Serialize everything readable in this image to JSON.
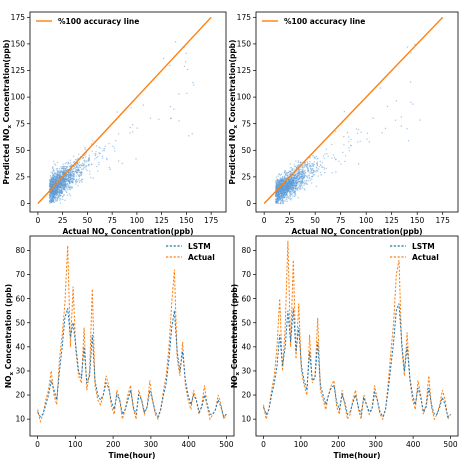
{
  "colors": {
    "scatter": "#5b9bd5",
    "line_ideal": "#ff7f0e",
    "lstm": "#1f77b4",
    "actual": "#ff7f0e"
  },
  "chart_data": [
    {
      "type": "scatter",
      "xlabel_main": "Actual NO",
      "xlabel_sub": "x",
      "xlabel_tail": " Concentration(ppb)",
      "ylabel_main": "Predicted NO",
      "ylabel_sub": "x",
      "ylabel_tail": " Concentration(ppb)",
      "xlim": [
        -8,
        190
      ],
      "ylim": [
        -8,
        180
      ],
      "xticks": [
        0,
        25,
        50,
        75,
        100,
        125,
        150,
        175
      ],
      "yticks": [
        0,
        25,
        50,
        75,
        100,
        125,
        150,
        175
      ],
      "legend": {
        "position": "top-left",
        "entries": [
          "%100 accuracy line"
        ]
      },
      "reference_line": {
        "name": "%100 accuracy line",
        "from": [
          0,
          0
        ],
        "to": [
          175,
          175
        ]
      },
      "cloud": {
        "center": [
          18,
          16
        ],
        "spread": [
          14,
          12
        ],
        "n": 1400,
        "bias": 0.72
      },
      "grid": false
    },
    {
      "type": "scatter",
      "xlabel_main": "Actual NO",
      "xlabel_sub": "x",
      "xlabel_tail": " Concentration(ppb)",
      "ylabel_main": "Predicted NO",
      "ylabel_sub": "x",
      "ylabel_tail": " Concentration(ppb)",
      "xlim": [
        -8,
        190
      ],
      "ylim": [
        -8,
        180
      ],
      "xticks": [
        0,
        25,
        50,
        75,
        100,
        125,
        150,
        175
      ],
      "yticks": [
        0,
        25,
        50,
        75,
        100,
        125,
        150,
        175
      ],
      "legend": {
        "position": "top-left",
        "entries": [
          "%100 accuracy line"
        ]
      },
      "reference_line": {
        "name": "%100 accuracy line",
        "from": [
          0,
          0
        ],
        "to": [
          175,
          175
        ]
      },
      "cloud": {
        "center": [
          18,
          14
        ],
        "spread": [
          15,
          11
        ],
        "n": 1400,
        "bias": 0.62
      },
      "grid": false
    },
    {
      "type": "line",
      "xlabel": "Time(hour)",
      "ylabel_main": "NO",
      "ylabel_sub": "x",
      "ylabel_tail": " Concentration (ppb)",
      "xlim": [
        -20,
        520
      ],
      "ylim": [
        3,
        86
      ],
      "xticks": [
        0,
        100,
        200,
        300,
        400,
        500
      ],
      "yticks": [
        10,
        20,
        30,
        40,
        50,
        60,
        70,
        80
      ],
      "legend": {
        "position": "top-right",
        "entries": [
          "LSTM",
          "Actual"
        ]
      },
      "series": [
        {
          "name": "LSTM",
          "key": "lstm"
        },
        {
          "name": "Actual",
          "key": "actual"
        }
      ],
      "actual": [
        14,
        9,
        12,
        18,
        22,
        30,
        20,
        16,
        35,
        45,
        58,
        82,
        40,
        65,
        38,
        28,
        25,
        48,
        22,
        30,
        64,
        24,
        18,
        16,
        20,
        28,
        24,
        15,
        12,
        22,
        18,
        10,
        14,
        20,
        24,
        14,
        10,
        22,
        18,
        12,
        15,
        26,
        18,
        12,
        10,
        14,
        22,
        28,
        40,
        58,
        72,
        35,
        28,
        42,
        24,
        18,
        14,
        22,
        18,
        12,
        16,
        24,
        15,
        10,
        12,
        14,
        20,
        16,
        10,
        12
      ],
      "lstm": [
        13,
        11,
        12,
        16,
        20,
        26,
        22,
        18,
        30,
        40,
        52,
        56,
        44,
        50,
        40,
        30,
        27,
        40,
        25,
        28,
        45,
        26,
        20,
        18,
        20,
        25,
        23,
        17,
        14,
        20,
        18,
        12,
        14,
        18,
        22,
        15,
        12,
        20,
        18,
        13,
        15,
        22,
        18,
        13,
        11,
        14,
        20,
        25,
        35,
        48,
        55,
        38,
        30,
        38,
        26,
        20,
        16,
        20,
        18,
        13,
        15,
        20,
        16,
        12,
        12,
        14,
        18,
        15,
        11,
        12
      ],
      "grid": false
    },
    {
      "type": "line",
      "xlabel": "Time(hour)",
      "ylabel_main": "NO",
      "ylabel_sub": "x",
      "ylabel_tail": " Concentration (ppb)",
      "xlim": [
        -20,
        520
      ],
      "ylim": [
        3,
        86
      ],
      "xticks": [
        0,
        100,
        200,
        300,
        400,
        500
      ],
      "yticks": [
        10,
        20,
        30,
        40,
        50,
        60,
        70,
        80
      ],
      "legend": {
        "position": "top-right",
        "entries": [
          "LSTM",
          "Actual"
        ]
      },
      "series": [
        {
          "name": "LSTM",
          "key": "lstm"
        },
        {
          "name": "Actual",
          "key": "actual"
        }
      ],
      "actual": [
        16,
        10,
        14,
        22,
        28,
        40,
        60,
        30,
        48,
        84,
        40,
        76,
        35,
        58,
        30,
        24,
        20,
        45,
        25,
        28,
        52,
        22,
        18,
        14,
        20,
        24,
        26,
        15,
        12,
        22,
        16,
        10,
        12,
        18,
        22,
        14,
        10,
        20,
        16,
        12,
        14,
        24,
        18,
        12,
        10,
        14,
        25,
        38,
        50,
        70,
        76,
        40,
        28,
        46,
        26,
        18,
        14,
        26,
        20,
        12,
        16,
        28,
        15,
        10,
        12,
        16,
        22,
        18,
        10,
        12
      ],
      "lstm": [
        15,
        12,
        14,
        20,
        25,
        32,
        45,
        32,
        40,
        55,
        42,
        56,
        38,
        48,
        32,
        26,
        22,
        38,
        26,
        27,
        42,
        24,
        20,
        16,
        20,
        23,
        24,
        17,
        14,
        20,
        17,
        12,
        13,
        17,
        20,
        15,
        12,
        19,
        16,
        13,
        14,
        21,
        18,
        13,
        11,
        14,
        22,
        32,
        42,
        55,
        58,
        42,
        30,
        40,
        27,
        20,
        16,
        23,
        19,
        13,
        15,
        23,
        16,
        12,
        12,
        15,
        19,
        16,
        11,
        12
      ],
      "grid": false
    }
  ]
}
